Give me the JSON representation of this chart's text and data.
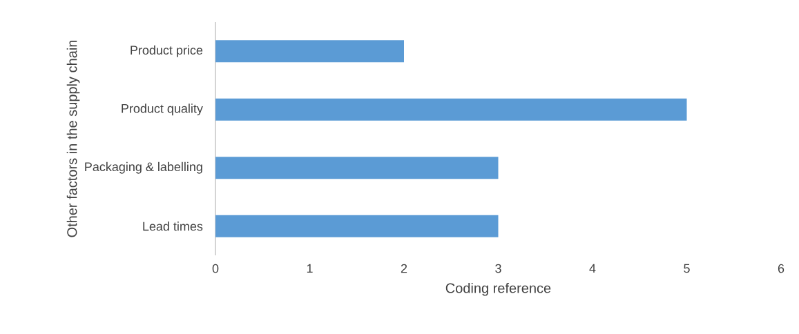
{
  "chart_data": {
    "type": "bar",
    "orientation": "horizontal",
    "xlabel": "Coding reference",
    "ylabel": "Other factors in the supply chain",
    "categories": [
      "Product price",
      "Product quality",
      "Packaging & labelling",
      "Lead times"
    ],
    "values": [
      2,
      5,
      3,
      3
    ],
    "color": "#5b9bd5",
    "xlim": [
      0,
      6
    ],
    "xticks": [
      0,
      1,
      2,
      3,
      4,
      5,
      6
    ],
    "grid": false
  }
}
